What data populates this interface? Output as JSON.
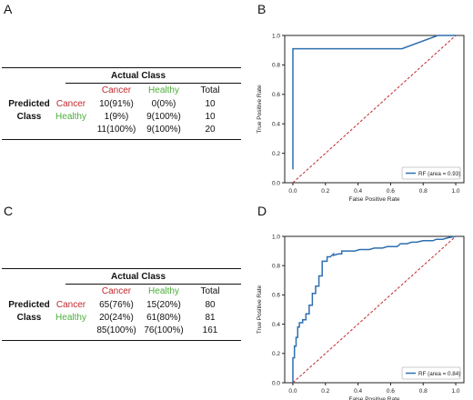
{
  "colors": {
    "cancer": "#c0282d",
    "healthy": "#4cae3a",
    "roc_line": "#2e6fb0",
    "chance_line": "#c0282d"
  },
  "panels": {
    "A": {
      "letter": "A",
      "header": "Actual Class",
      "row_title_1": "Predicted",
      "row_title_2": "Class",
      "col_headers": [
        "Cancer",
        "Healthy",
        "Total"
      ],
      "rows": [
        {
          "label": "Cancer",
          "cells": [
            "10(91%)",
            "0(0%)",
            "10"
          ]
        },
        {
          "label": "Healthy",
          "cells": [
            "1(9%)",
            "9(100%)",
            "10"
          ]
        },
        {
          "label": "",
          "cells": [
            "11(100%)",
            "9(100%)",
            "20"
          ]
        }
      ]
    },
    "C": {
      "letter": "C",
      "header": "Actual Class",
      "row_title_1": "Predicted",
      "row_title_2": "Class",
      "col_headers": [
        "Cancer",
        "Healthy",
        "Total"
      ],
      "rows": [
        {
          "label": "Cancer",
          "cells": [
            "65(76%)",
            "15(20%)",
            "80"
          ]
        },
        {
          "label": "Healthy",
          "cells": [
            "20(24%)",
            "61(80%)",
            "81"
          ]
        },
        {
          "label": "",
          "cells": [
            "85(100%)",
            "76(100%)",
            "161"
          ]
        }
      ]
    },
    "B": {
      "letter": "B"
    },
    "D": {
      "letter": "D"
    }
  },
  "chart_data": [
    {
      "type": "line",
      "panel": "B",
      "xlabel": "False Positive Rate",
      "ylabel": "True Positive Rate",
      "xlim": [
        -0.05,
        1.05
      ],
      "ylim": [
        0.0,
        1.0
      ],
      "xticks": [
        "0.0",
        "0.2",
        "0.4",
        "0.6",
        "0.8",
        "1.0"
      ],
      "yticks": [
        "0.0",
        "0.2",
        "0.4",
        "0.6",
        "0.8",
        "1.0"
      ],
      "legend": "RF (area = 0.93)",
      "legend_position": "lower-right",
      "series": [
        {
          "name": "RF (area = 0.93)",
          "style": "solid",
          "x": [
            0.0,
            0.0,
            0.0,
            0.67,
            0.89,
            1.0
          ],
          "y": [
            0.09,
            0.91,
            0.91,
            0.91,
            1.0,
            1.0
          ]
        },
        {
          "style": "dashed",
          "x": [
            0,
            1
          ],
          "y": [
            0,
            1
          ]
        }
      ]
    },
    {
      "type": "line",
      "panel": "D",
      "xlabel": "False Positive Rate",
      "ylabel": "True Positive Rate",
      "xlim": [
        -0.05,
        1.05
      ],
      "ylim": [
        0.0,
        1.0
      ],
      "xticks": [
        "0.0",
        "0.2",
        "0.4",
        "0.6",
        "0.8",
        "1.0"
      ],
      "yticks": [
        "0.0",
        "0.2",
        "0.4",
        "0.6",
        "0.8",
        "1.0"
      ],
      "legend": "RF (area = 0.84)",
      "legend_position": "lower-right",
      "series": [
        {
          "name": "RF (area = 0.84)",
          "style": "solid",
          "x": [
            0.0,
            0.0,
            0.01,
            0.01,
            0.02,
            0.02,
            0.03,
            0.03,
            0.04,
            0.04,
            0.06,
            0.06,
            0.08,
            0.08,
            0.1,
            0.1,
            0.12,
            0.12,
            0.14,
            0.14,
            0.16,
            0.16,
            0.18,
            0.18,
            0.21,
            0.21,
            0.23,
            0.25,
            0.25,
            0.28,
            0.3,
            0.3,
            0.34,
            0.38,
            0.41,
            0.44,
            0.47,
            0.5,
            0.55,
            0.58,
            0.64,
            0.66,
            0.7,
            0.73,
            0.76,
            0.8,
            0.86,
            0.88,
            0.92,
            0.95,
            1.0
          ],
          "y": [
            0.0,
            0.17,
            0.17,
            0.25,
            0.25,
            0.31,
            0.31,
            0.38,
            0.38,
            0.41,
            0.41,
            0.43,
            0.43,
            0.47,
            0.47,
            0.53,
            0.53,
            0.61,
            0.61,
            0.66,
            0.66,
            0.73,
            0.73,
            0.83,
            0.83,
            0.86,
            0.86,
            0.88,
            0.87,
            0.88,
            0.88,
            0.9,
            0.9,
            0.9,
            0.91,
            0.91,
            0.91,
            0.92,
            0.92,
            0.93,
            0.93,
            0.95,
            0.95,
            0.96,
            0.96,
            0.97,
            0.97,
            0.98,
            0.98,
            0.99,
            1.0
          ]
        },
        {
          "style": "dashed",
          "x": [
            0,
            1
          ],
          "y": [
            0,
            1
          ]
        }
      ]
    }
  ]
}
